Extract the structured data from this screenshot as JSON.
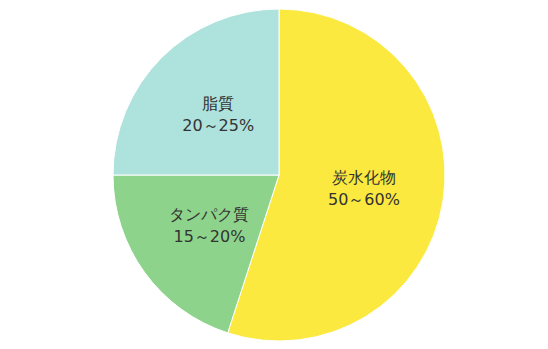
{
  "chart_data": {
    "type": "pie",
    "categories": [
      "炭水化物",
      "タンパク質",
      "脂質"
    ],
    "values": [
      55,
      20,
      25
    ],
    "value_labels": [
      "50～60%",
      "15～20%",
      "20～25%"
    ],
    "colors": [
      "#fbe93f",
      "#8ed38b",
      "#aee2dc"
    ]
  }
}
